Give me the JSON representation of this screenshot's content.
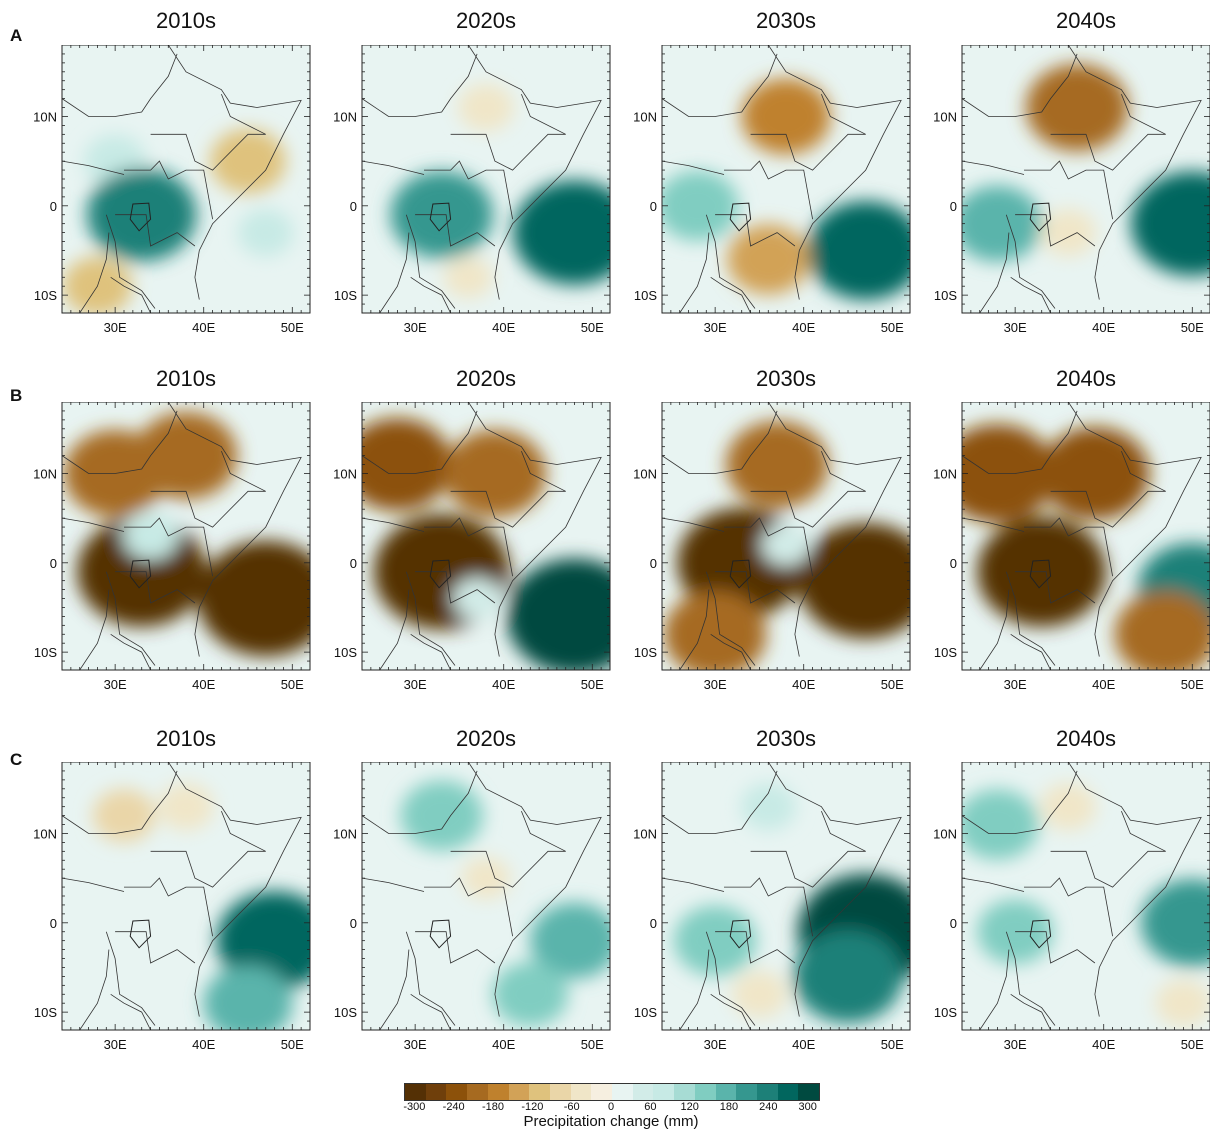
{
  "figure": {
    "rows": [
      {
        "label": "A",
        "panels": [
          {
            "title": "2010s",
            "anomaly": [
              {
                "lon": 30,
                "lat": 5,
                "v": 80
              },
              {
                "lon": 33,
                "lat": -1,
                "v": 220
              },
              {
                "lon": 45,
                "lat": 5,
                "v": -120
              },
              {
                "lon": 47,
                "lat": -3,
                "v": 60
              },
              {
                "lon": 28,
                "lat": -9,
                "v": -100
              }
            ]
          },
          {
            "title": "2020s",
            "anomaly": [
              {
                "lon": 48,
                "lat": -3,
                "v": 260
              },
              {
                "lon": 33,
                "lat": -1,
                "v": 200
              },
              {
                "lon": 38,
                "lat": 11,
                "v": -60
              },
              {
                "lon": 36,
                "lat": -8,
                "v": -40
              }
            ]
          },
          {
            "title": "2030s",
            "anomaly": [
              {
                "lon": 47,
                "lat": -5,
                "v": 240
              },
              {
                "lon": 38,
                "lat": 10,
                "v": -160
              },
              {
                "lon": 28,
                "lat": 0,
                "v": 140
              },
              {
                "lon": 36,
                "lat": -6,
                "v": -140
              }
            ]
          },
          {
            "title": "2040s",
            "anomaly": [
              {
                "lon": 50,
                "lat": -2,
                "v": 260
              },
              {
                "lon": 37,
                "lat": 11,
                "v": -200
              },
              {
                "lon": 28,
                "lat": -2,
                "v": 160
              },
              {
                "lon": 36,
                "lat": -3,
                "v": -60
              }
            ]
          }
        ]
      },
      {
        "label": "B",
        "panels": [
          {
            "title": "2010s",
            "anomaly": [
              {
                "lon": 47,
                "lat": -4,
                "v": -300
              },
              {
                "lon": 33,
                "lat": -1,
                "v": -280
              },
              {
                "lon": 30,
                "lat": 10,
                "v": -200
              },
              {
                "lon": 38,
                "lat": 12,
                "v": -200
              },
              {
                "lon": 34,
                "lat": 3,
                "v": 60
              }
            ]
          },
          {
            "title": "2020s",
            "anomaly": [
              {
                "lon": 48,
                "lat": -6,
                "v": 300
              },
              {
                "lon": 33,
                "lat": -1,
                "v": -300
              },
              {
                "lon": 28,
                "lat": 11,
                "v": -220
              },
              {
                "lon": 39,
                "lat": 10,
                "v": -200
              },
              {
                "lon": 37,
                "lat": -4,
                "v": 40
              }
            ]
          },
          {
            "title": "2030s",
            "anomaly": [
              {
                "lon": 47,
                "lat": -2,
                "v": -300
              },
              {
                "lon": 33,
                "lat": 0,
                "v": -280
              },
              {
                "lon": 37,
                "lat": 11,
                "v": -200
              },
              {
                "lon": 30,
                "lat": -8,
                "v": -200
              },
              {
                "lon": 38,
                "lat": 2,
                "v": 40
              }
            ]
          },
          {
            "title": "2040s",
            "anomaly": [
              {
                "lon": 50,
                "lat": -3,
                "v": 220
              },
              {
                "lon": 33,
                "lat": -1,
                "v": -280
              },
              {
                "lon": 28,
                "lat": 10,
                "v": -240
              },
              {
                "lon": 39,
                "lat": 10,
                "v": -220
              },
              {
                "lon": 47,
                "lat": -8,
                "v": -200
              }
            ]
          }
        ]
      },
      {
        "label": "C",
        "panels": [
          {
            "title": "2010s",
            "anomaly": [
              {
                "lon": 48,
                "lat": -2,
                "v": 240
              },
              {
                "lon": 45,
                "lat": -9,
                "v": 160
              },
              {
                "lon": 31,
                "lat": 12,
                "v": -80
              },
              {
                "lon": 38,
                "lat": 13,
                "v": -60
              }
            ]
          },
          {
            "title": "2020s",
            "anomaly": [
              {
                "lon": 48,
                "lat": -2,
                "v": 160
              },
              {
                "lon": 33,
                "lat": 12,
                "v": 140
              },
              {
                "lon": 43,
                "lat": -8,
                "v": 120
              },
              {
                "lon": 38,
                "lat": 5,
                "v": -40
              }
            ]
          },
          {
            "title": "2030s",
            "anomaly": [
              {
                "lon": 47,
                "lat": -1,
                "v": 300
              },
              {
                "lon": 45,
                "lat": -6,
                "v": 220
              },
              {
                "lon": 30,
                "lat": -2,
                "v": 140
              },
              {
                "lon": 35,
                "lat": -8,
                "v": -60
              },
              {
                "lon": 36,
                "lat": 13,
                "v": 60
              }
            ]
          },
          {
            "title": "2040s",
            "anomaly": [
              {
                "lon": 50,
                "lat": 0,
                "v": 200
              },
              {
                "lon": 28,
                "lat": 11,
                "v": 140
              },
              {
                "lon": 30,
                "lat": -1,
                "v": 120
              },
              {
                "lon": 49,
                "lat": -9,
                "v": -60
              },
              {
                "lon": 36,
                "lat": 13,
                "v": -60
              }
            ]
          }
        ]
      }
    ],
    "lon_ticks": [
      "30E",
      "40E",
      "50E"
    ],
    "lat_ticks": [
      "10N",
      "0",
      "10S"
    ],
    "extent": {
      "lon": [
        24,
        52
      ],
      "lat": [
        -12,
        18
      ]
    }
  },
  "colorbar": {
    "title": "Precipitation change (mm)",
    "tick_labels": [
      "-300",
      "-240",
      "-180",
      "-120",
      "-60",
      "0",
      "60",
      "120",
      "180",
      "240",
      "300"
    ],
    "tick_values": [
      -300,
      -240,
      -180,
      -120,
      -60,
      0,
      60,
      120,
      180,
      240,
      300
    ],
    "colors": [
      "#543005",
      "#6f3f0b",
      "#8c510a",
      "#a66a20",
      "#bf812d",
      "#d2a257",
      "#dfc27d",
      "#ead6a8",
      "#f0e6c8",
      "#f6efe0",
      "#e8f4f2",
      "#d2ece8",
      "#c7eae5",
      "#a7dcd4",
      "#80cdc1",
      "#5ab4ab",
      "#35978f",
      "#1d8078",
      "#01665e",
      "#004a40"
    ]
  }
}
